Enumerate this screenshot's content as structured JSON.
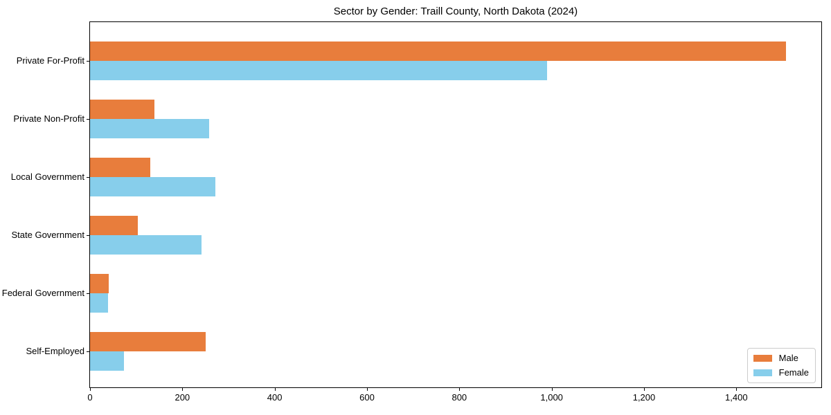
{
  "chart_data": {
    "type": "bar",
    "orientation": "horizontal",
    "title": "Sector by Gender: Traill County, North Dakota (2024)",
    "categories": [
      "Private For-Profit",
      "Private Non-Profit",
      "Local Government",
      "State Government",
      "Federal Government",
      "Self-Employed"
    ],
    "series": [
      {
        "name": "Male",
        "color": "#e87d3c",
        "values": [
          1508,
          140,
          131,
          103,
          41,
          251
        ]
      },
      {
        "name": "Female",
        "color": "#87ceeb",
        "values": [
          990,
          258,
          271,
          242,
          39,
          74
        ]
      }
    ],
    "xlabel": "",
    "ylabel": "",
    "xlim": [
      0,
      1584
    ],
    "xticks": [
      0,
      200,
      400,
      600,
      800,
      1000,
      1200,
      1400
    ],
    "xtick_labels": [
      "0",
      "200",
      "400",
      "600",
      "800",
      "1,000",
      "1,200",
      "1,400"
    ],
    "grid": false,
    "legend": {
      "position": "lower-right",
      "entries": [
        "Male",
        "Female"
      ]
    }
  }
}
